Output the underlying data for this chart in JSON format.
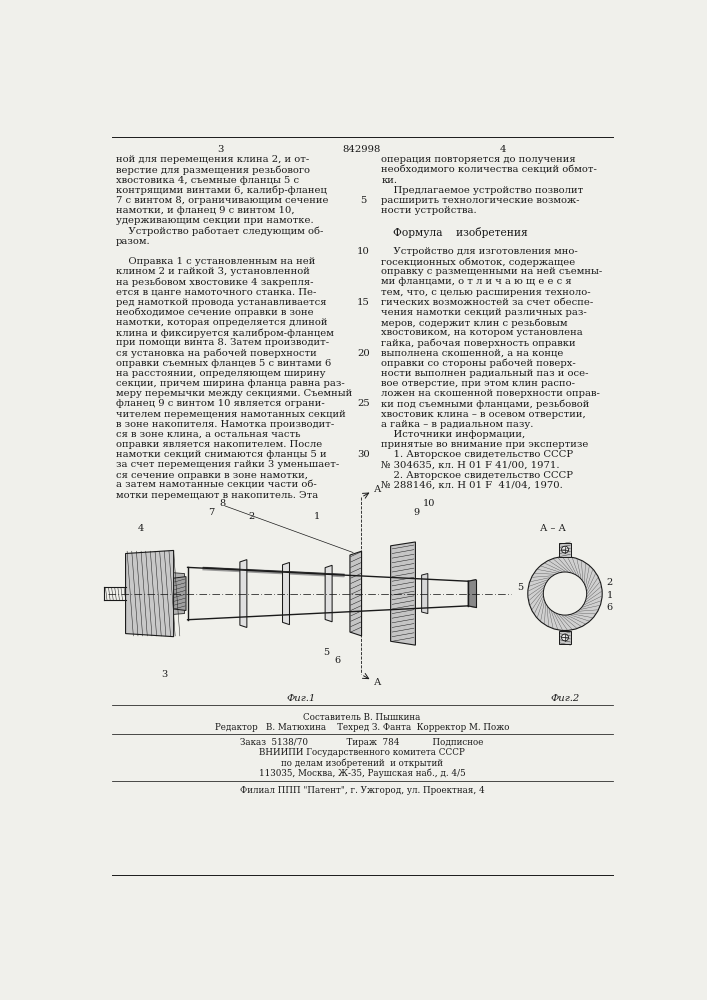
{
  "title_number": "842998",
  "page_left": "3",
  "page_right": "4",
  "bg_color": "#f0f0eb",
  "text_color": "#1a1a1a",
  "font_size_body": 7.2,
  "font_size_small": 6.3,
  "col_left_lines": [
    "ной для перемещения клина 2, и от-",
    "верстие для размещения резьбового",
    "хвостовика 4, съемные фланцы 5 с",
    "контрящими винтами 6, калибр-фланец",
    "7 с винтом 8, ограничивающим сечение",
    "намотки, и фланец 9 с винтом 10,",
    "удерживающим секции при намотке.",
    "    Устройство работает следующим об-",
    "разом.",
    "",
    "    Оправка 1 с установленным на ней",
    "клином 2 и гайкой 3, установленной",
    "на резьбовом хвостовике 4 закрепля-",
    "ется в цанге намоточного станка. Пе-",
    "ред намоткой провода устанавливается",
    "необходимое сечение оправки в зоне",
    "намотки, которая определяется длиной",
    "клина и фиксируется калибром-фланцем",
    "при помощи винта 8. Затем производит-",
    "ся установка на рабочей поверхности",
    "оправки съемных фланцев 5 с винтами 6",
    "на расстоянии, определяющем ширину",
    "секции, причем ширина фланца равна раз-",
    "меру перемычки между секциями. Съемный",
    "фланец 9 с винтом 10 является ограни-",
    "чителем перемещения намотанных секций",
    "в зоне накопителя. Намотка производит-",
    "ся в зоне клина, а остальная часть",
    "оправки является накопителем. После",
    "намотки секций снимаются фланцы 5 и",
    "за счет перемещения гайки 3 уменьшает-",
    "ся сечение оправки в зоне намотки,",
    "а затем намотанные секции части об-",
    "мотки перемещают в накопитель. Эта"
  ],
  "col_right_lines": [
    "операция повторяется до получения",
    "необходимого количества секций обмот-",
    "ки.",
    "    Предлагаемое устройство позволит",
    "расширить технологические возмож-",
    "ности устройства.",
    "",
    "Формула    изобретения",
    "",
    "    Устройство для изготовления мно-",
    "госекционных обмоток, содержащее",
    "оправку с размещенными на ней съемны-",
    "ми фланцами, о т л и ч а ю щ е е с я",
    "тем, что, с целью расширения техноло-",
    "гических возможностей за счет обеспе-",
    "чения намотки секций различных раз-",
    "меров, содержит клин с резьбовым",
    "хвостовиком, на котором установлена",
    "гайка, рабочая поверхность оправки",
    "выполнена скошенной, а на конце",
    "оправки со стороны рабочей поверх-",
    "ности выполнен радиальный паз и осе-",
    "вое отверстие, при этом клин распо-",
    "ложен на скошенной поверхности оправ-",
    "ки под съемными фланцами, резьбовой",
    "хвостовик клина – в осевом отверстии,",
    "а гайка – в радиальном пазу.",
    "    Источники информации,",
    "принятые во внимание при экспертизе",
    "    1. Авторское свидетельство СССР",
    "№ 304635, кл. Н 01 F 41/00, 1971.",
    "    2. Авторское свидетельство СССР",
    "№ 288146, кл. Н 01 F  41/04, 1970."
  ],
  "line_number_indices": [
    4,
    9,
    14,
    19,
    24,
    29
  ],
  "line_number_values": [
    5,
    10,
    15,
    20,
    25,
    30
  ],
  "footer_lines": [
    "Составитель В. Пышкина",
    "Редактор   В. Матюхина    Техред З. Фанта  Корректор М. Пожо",
    "",
    "Заказ  5138/70              Тираж  784            Подписное",
    "ВНИИПИ Государственного комитета СССР",
    "по делам изобретений  и открытий",
    "113035, Москва, Ж-35, Раушская наб., д. 4/5",
    "",
    "Филиал ППП \"Патент\", г. Ужгород, ул. Проектная, 4"
  ]
}
